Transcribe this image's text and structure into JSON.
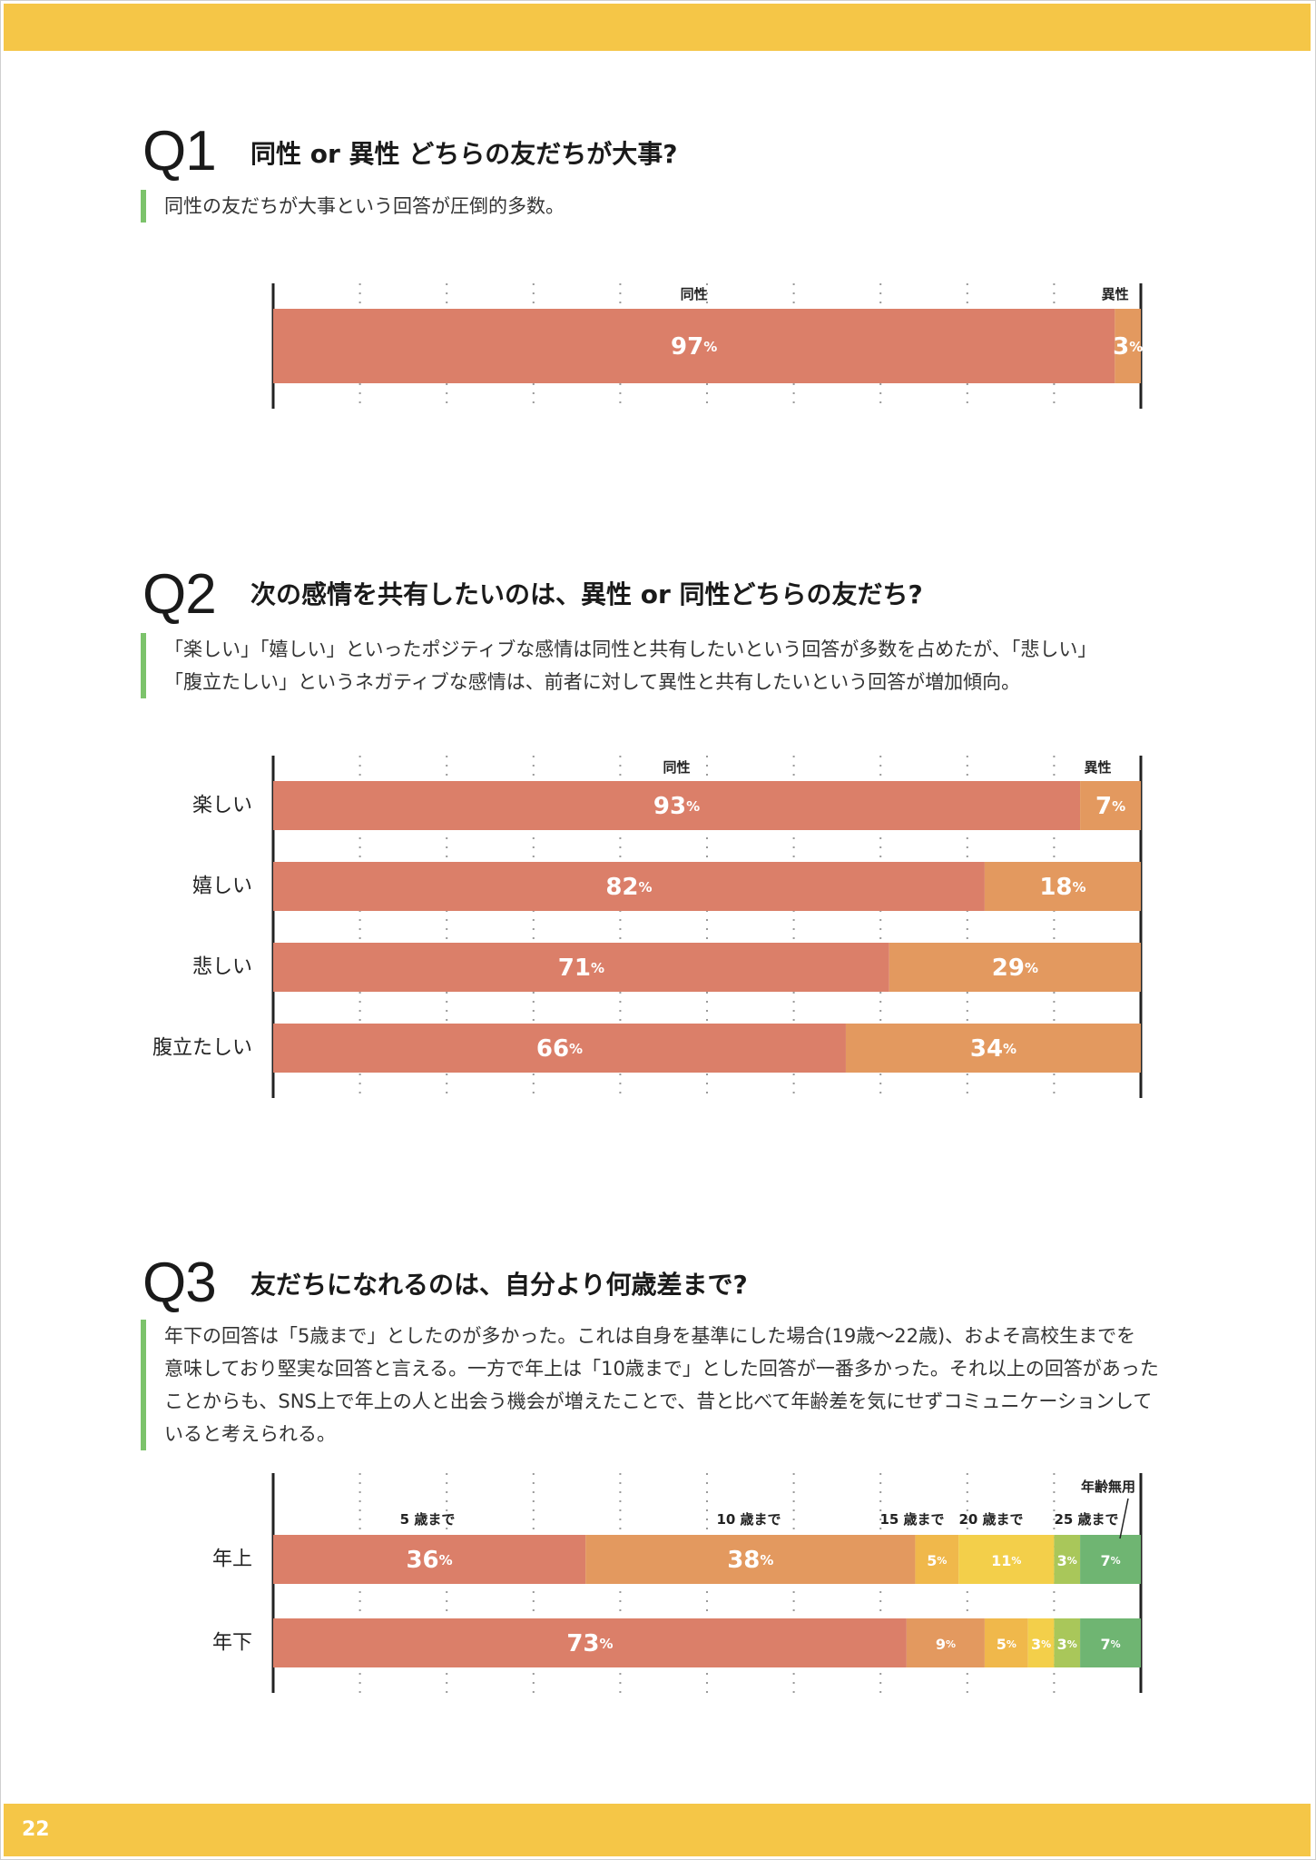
{
  "page_number": "22",
  "q1": {
    "num": "Q1",
    "title": "同性 or 異性 どちらの友だちが大事?",
    "description": "同性の友だちが大事という回答が圧倒的多数。"
  },
  "q2": {
    "num": "Q2",
    "title": "次の感情を共有したいのは、異性 or 同性どちらの友だち?",
    "description": "「楽しい」「嬉しい」といったポジティブな感情は同性と共有したいという回答が多数を占めたが、「悲しい」\n「腹立たしい」というネガティブな感情は、前者に対して異性と共有したいという回答が増加傾向。"
  },
  "q3": {
    "num": "Q3",
    "title": "友だちになれるのは、自分より何歳差まで?",
    "description": "年下の回答は「5歳まで」としたのが多かった。これは自身を基準にした場合(19歳〜22歳)、およそ高校生までを\n意味しており堅実な回答と言える。一方で年上は「10歳まで」とした回答が一番多かった。それ以上の回答があった\nことからも、SNS上で年上の人と出会う機会が増えたことで、昔と比べて年齢差を気にせずコミュニケーションして\nいると考えられる。"
  },
  "colors": {
    "band": "#f5c647",
    "accent_bar": "#7cc36b",
    "seg1": "#db7f69",
    "seg2": "#e3995f",
    "seg3": "#f0b84b",
    "seg4": "#f3cf4a",
    "seg5": "#a9c75a",
    "seg6": "#6fb572"
  },
  "chart_data": [
    {
      "type": "bar",
      "orientation": "horizontal-stacked-percent",
      "categories": [
        ""
      ],
      "series": [
        {
          "name": "同性",
          "values": [
            97
          ]
        },
        {
          "name": "異性",
          "values": [
            3
          ]
        }
      ],
      "unit": "%",
      "xlim": [
        0,
        100
      ]
    },
    {
      "type": "bar",
      "orientation": "horizontal-stacked-percent",
      "categories": [
        "楽しい",
        "嬉しい",
        "悲しい",
        "腹立たしい"
      ],
      "series": [
        {
          "name": "同性",
          "values": [
            93,
            82,
            71,
            66
          ]
        },
        {
          "name": "異性",
          "values": [
            7,
            18,
            29,
            34
          ]
        }
      ],
      "unit": "%",
      "xlim": [
        0,
        100
      ]
    },
    {
      "type": "bar",
      "orientation": "horizontal-stacked-percent",
      "categories": [
        "年上",
        "年下"
      ],
      "series": [
        {
          "name": "5 歳まで",
          "values": [
            36,
            73
          ]
        },
        {
          "name": "10 歳まで",
          "values": [
            38,
            9
          ]
        },
        {
          "name": "15 歳まで",
          "values": [
            5,
            5
          ]
        },
        {
          "name": "20 歳まで",
          "values": [
            11,
            3
          ]
        },
        {
          "name": "25 歳まで",
          "values": [
            3,
            3
          ]
        },
        {
          "name": "年齢無用",
          "values": [
            7,
            7
          ]
        }
      ],
      "unit": "%",
      "xlim": [
        0,
        100
      ]
    }
  ]
}
